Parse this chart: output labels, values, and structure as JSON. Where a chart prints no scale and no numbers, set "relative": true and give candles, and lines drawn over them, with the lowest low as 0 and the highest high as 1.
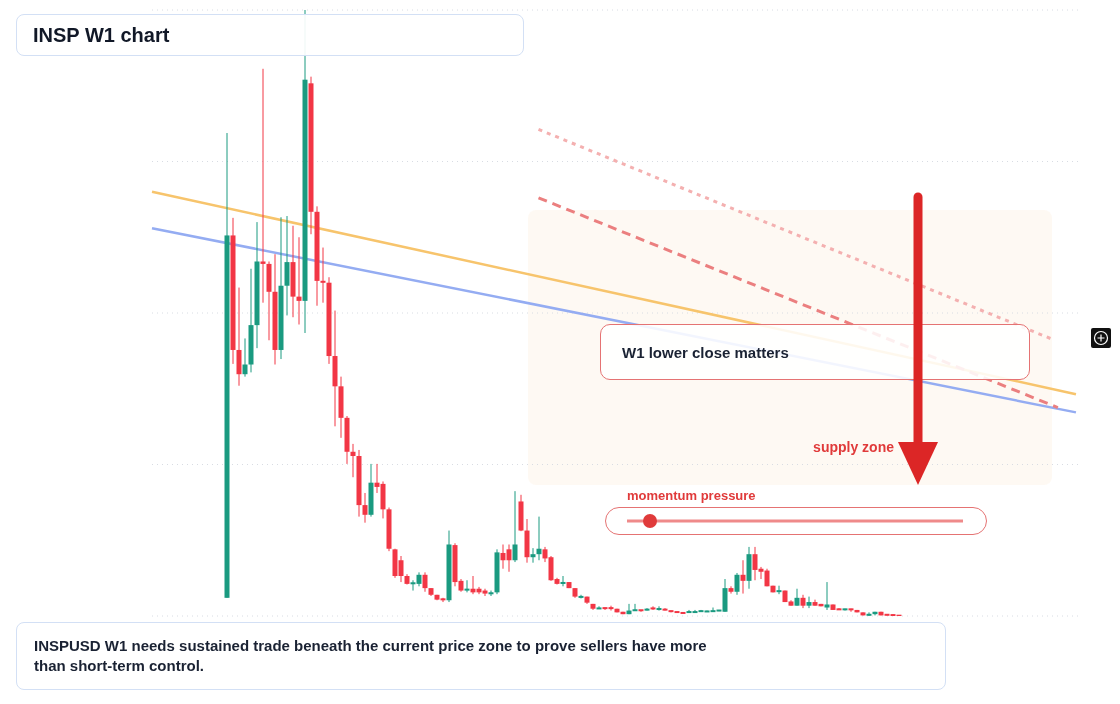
{
  "chart_data": {
    "type": "candlestick",
    "title": "INSP W1 chart",
    "relative": true,
    "grid": "y",
    "categories": [
      null,
      null,
      null,
      null,
      null,
      null,
      null,
      null,
      null,
      null,
      null,
      null,
      null,
      null,
      null,
      null,
      null,
      null,
      null,
      null,
      null,
      null,
      null,
      null,
      null,
      null,
      null,
      null,
      null,
      null,
      null,
      null,
      null,
      null,
      null,
      null,
      null,
      null,
      null,
      null,
      null,
      null,
      null,
      null,
      null,
      null,
      null,
      null,
      null,
      null,
      null,
      null,
      null,
      null,
      null,
      null,
      null,
      null,
      null,
      null,
      null,
      null,
      null,
      null,
      null,
      null,
      null,
      null,
      null,
      null,
      null,
      null,
      null,
      null,
      null,
      null,
      null,
      null,
      null,
      null,
      null,
      null,
      null,
      null,
      null,
      null,
      null,
      null,
      null,
      null,
      null,
      null,
      null,
      null,
      null,
      null,
      null,
      null,
      null,
      null,
      null,
      null,
      null,
      null,
      null,
      null,
      null,
      null,
      null,
      null,
      null,
      null,
      null,
      null,
      null,
      null,
      null,
      null,
      null,
      null,
      null,
      null,
      null,
      null,
      null,
      null,
      null,
      null,
      null,
      null,
      null,
      null,
      null,
      null,
      null,
      null,
      null,
      null,
      null,
      null,
      null,
      null,
      null,
      null,
      null,
      null,
      null,
      null,
      null,
      null,
      null,
      null,
      null,
      null,
      null
    ],
    "ohlc": [
      null,
      null,
      null,
      null,
      null,
      null,
      null,
      null,
      null,
      null,
      null,
      null,
      [
        0.03,
        0.797,
        0.03,
        0.628
      ],
      [
        0.628,
        0.657,
        0.416,
        0.439
      ],
      [
        0.439,
        0.542,
        0.38,
        0.399
      ],
      [
        0.399,
        0.458,
        0.395,
        0.415
      ],
      [
        0.415,
        0.573,
        0.402,
        0.48
      ],
      [
        0.48,
        0.65,
        0.442,
        0.585
      ],
      [
        0.585,
        0.903,
        0.517,
        0.581
      ],
      [
        0.581,
        0.585,
        0.455,
        0.535
      ],
      [
        0.535,
        0.597,
        0.415,
        0.439
      ],
      [
        0.439,
        0.658,
        0.424,
        0.545
      ],
      [
        0.545,
        0.66,
        0.496,
        0.584
      ],
      [
        0.584,
        0.644,
        0.493,
        0.527
      ],
      [
        0.527,
        0.625,
        0.481,
        0.52
      ],
      [
        0.52,
        1.0,
        0.467,
        0.885
      ],
      [
        0.879,
        0.89,
        0.63,
        0.667
      ],
      [
        0.667,
        0.676,
        0.512,
        0.553
      ],
      [
        0.553,
        0.608,
        0.517,
        0.55
      ],
      [
        0.55,
        0.559,
        0.416,
        0.429
      ],
      [
        0.429,
        0.504,
        0.313,
        0.379
      ],
      [
        0.379,
        0.395,
        0.294,
        0.327
      ],
      [
        0.327,
        0.33,
        0.251,
        0.271
      ],
      [
        0.271,
        0.284,
        0.229,
        0.264
      ],
      [
        0.264,
        0.274,
        0.164,
        0.183
      ],
      [
        0.183,
        0.203,
        0.154,
        0.167
      ],
      [
        0.167,
        0.251,
        0.164,
        0.22
      ],
      [
        0.22,
        0.251,
        0.203,
        0.213
      ],
      [
        0.218,
        0.222,
        0.161,
        0.176
      ],
      [
        0.176,
        0.179,
        0.107,
        0.111
      ],
      [
        0.11,
        0.111,
        0.063,
        0.066
      ],
      [
        0.092,
        0.099,
        0.056,
        0.066
      ],
      [
        0.066,
        0.069,
        0.052,
        0.053
      ],
      [
        0.053,
        0.059,
        0.042,
        0.055
      ],
      [
        0.053,
        0.072,
        0.049,
        0.068
      ],
      [
        0.068,
        0.072,
        0.04,
        0.046
      ],
      [
        0.046,
        0.046,
        0.033,
        0.035
      ],
      [
        0.035,
        0.035,
        0.026,
        0.027
      ],
      [
        0.029,
        0.03,
        0.023,
        0.026
      ],
      [
        0.026,
        0.141,
        0.023,
        0.118
      ],
      [
        0.117,
        0.12,
        0.049,
        0.056
      ],
      [
        0.058,
        0.061,
        0.04,
        0.042
      ],
      [
        0.042,
        0.059,
        0.039,
        0.045
      ],
      [
        0.045,
        0.066,
        0.036,
        0.039
      ],
      [
        0.045,
        0.048,
        0.036,
        0.039
      ],
      [
        0.042,
        0.045,
        0.033,
        0.037
      ],
      [
        0.036,
        0.042,
        0.033,
        0.039
      ],
      [
        0.039,
        0.11,
        0.036,
        0.105
      ],
      [
        0.104,
        0.118,
        0.078,
        0.092
      ],
      [
        0.11,
        0.118,
        0.073,
        0.092
      ],
      [
        0.092,
        0.206,
        0.089,
        0.118
      ],
      [
        0.189,
        0.2,
        0.14,
        0.141
      ],
      [
        0.141,
        0.16,
        0.088,
        0.097
      ],
      [
        0.097,
        0.112,
        0.088,
        0.102
      ],
      [
        0.102,
        0.164,
        0.092,
        0.111
      ],
      [
        0.11,
        0.114,
        0.089,
        0.095
      ],
      [
        0.097,
        0.099,
        0.058,
        0.059
      ],
      [
        0.061,
        0.063,
        0.052,
        0.053
      ],
      [
        0.053,
        0.066,
        0.049,
        0.056
      ],
      [
        0.056,
        0.056,
        0.046,
        0.046
      ],
      [
        0.046,
        0.046,
        0.03,
        0.032
      ],
      [
        0.031,
        0.035,
        0.029,
        0.032
      ],
      [
        0.032,
        0.032,
        0.02,
        0.022
      ],
      [
        0.02,
        0.02,
        0.01,
        0.012
      ],
      [
        0.012,
        0.016,
        0.012,
        0.013
      ],
      [
        0.014,
        0.014,
        0.01,
        0.012
      ],
      [
        0.014,
        0.017,
        0.009,
        0.012
      ],
      [
        0.012,
        0.012,
        0.006,
        0.006
      ],
      [
        0.007,
        0.007,
        0.003,
        0.003
      ],
      [
        0.003,
        0.02,
        0.003,
        0.009
      ],
      [
        0.009,
        0.02,
        0.009,
        0.01
      ],
      [
        0.01,
        0.01,
        0.007,
        0.009
      ],
      [
        0.009,
        0.013,
        0.009,
        0.012
      ],
      [
        0.013,
        0.016,
        0.01,
        0.012
      ],
      [
        0.01,
        0.016,
        0.009,
        0.013
      ],
      [
        0.012,
        0.013,
        0.009,
        0.009
      ],
      [
        0.009,
        0.009,
        0.006,
        0.007
      ],
      [
        0.007,
        0.007,
        0.006,
        0.006
      ],
      [
        0.006,
        0.006,
        0.004,
        0.004
      ],
      [
        0.006,
        0.01,
        0.006,
        0.007
      ],
      [
        0.006,
        0.01,
        0.006,
        0.007
      ],
      [
        0.007,
        0.01,
        0.007,
        0.009
      ],
      [
        0.007,
        0.009,
        0.007,
        0.008
      ],
      [
        0.007,
        0.014,
        0.007,
        0.009
      ],
      [
        0.008,
        0.01,
        0.008,
        0.01
      ],
      [
        0.007,
        0.061,
        0.007,
        0.046
      ],
      [
        0.046,
        0.049,
        0.037,
        0.04
      ],
      [
        0.04,
        0.071,
        0.035,
        0.068
      ],
      [
        0.068,
        0.092,
        0.037,
        0.058
      ],
      [
        0.058,
        0.114,
        0.045,
        0.102
      ],
      [
        0.102,
        0.114,
        0.059,
        0.076
      ],
      [
        0.078,
        0.081,
        0.061,
        0.073
      ],
      [
        0.075,
        0.078,
        0.049,
        0.049
      ],
      [
        0.05,
        0.05,
        0.039,
        0.039
      ],
      [
        0.04,
        0.05,
        0.036,
        0.042
      ],
      [
        0.042,
        0.042,
        0.023,
        0.023
      ],
      [
        0.024,
        0.026,
        0.017,
        0.017
      ],
      [
        0.017,
        0.045,
        0.017,
        0.03
      ],
      [
        0.03,
        0.035,
        0.013,
        0.017
      ],
      [
        0.017,
        0.032,
        0.013,
        0.023
      ],
      [
        0.023,
        0.027,
        0.017,
        0.017
      ],
      [
        0.02,
        0.02,
        0.016,
        0.016
      ],
      [
        0.014,
        0.056,
        0.01,
        0.019
      ],
      [
        0.019,
        0.019,
        0.01,
        0.01
      ],
      [
        0.012,
        0.013,
        0.01,
        0.01
      ],
      [
        0.01,
        0.012,
        0.009,
        0.012
      ],
      [
        0.012,
        0.012,
        0.007,
        0.01
      ],
      [
        0.01,
        0.01,
        0.006,
        0.006
      ],
      [
        0.006,
        0.006,
        0.001,
        0.001
      ],
      [
        0.001,
        0.006,
        0.0,
        0.003
      ],
      [
        0.003,
        0.007,
        0.001,
        0.007
      ],
      [
        0.007,
        0.007,
        0.001,
        0.001
      ],
      [
        0.003,
        0.003,
        0.001,
        0.001
      ],
      [
        0.003,
        0.003,
        0.0,
        0.0
      ],
      [
        0.001,
        0.001,
        0.0,
        0.0
      ],
      null,
      null,
      null,
      null,
      null,
      null,
      null,
      null,
      null,
      null,
      null,
      null,
      null,
      null,
      null,
      null,
      null,
      null,
      null,
      null,
      null,
      null,
      null,
      null,
      null,
      null,
      null,
      null,
      null,
      null
    ],
    "series": [
      {
        "type": "line",
        "color": "#f7c46c",
        "line_style": "solid",
        "values": [
          0.7,
          null,
          null,
          null,
          null,
          null,
          null,
          null,
          null,
          null,
          null,
          null,
          null,
          null,
          null,
          null,
          null,
          null,
          null,
          null,
          null,
          null,
          null,
          null,
          null,
          null,
          null,
          null,
          null,
          null,
          null,
          null,
          null,
          null,
          null,
          null,
          null,
          null,
          null,
          null,
          null,
          null,
          null,
          null,
          null,
          null,
          null,
          null,
          null,
          null,
          null,
          null,
          null,
          null,
          null,
          null,
          null,
          null,
          null,
          null,
          null,
          null,
          null,
          null,
          null,
          null,
          null,
          null,
          null,
          null,
          null,
          null,
          null,
          null,
          null,
          null,
          null,
          null,
          null,
          null,
          null,
          null,
          null,
          null,
          null,
          null,
          null,
          null,
          null,
          null,
          null,
          null,
          null,
          null,
          null,
          null,
          null,
          null,
          null,
          null,
          null,
          null,
          null,
          null,
          null,
          null,
          null,
          null,
          null,
          null,
          null,
          null,
          null,
          null,
          null,
          null,
          null,
          null,
          null,
          null,
          null,
          null,
          null,
          null,
          null,
          null,
          null,
          null,
          null,
          null,
          null,
          null,
          null,
          null,
          null,
          null,
          null,
          null,
          null,
          null,
          null,
          null,
          null,
          null,
          null,
          null,
          null,
          null,
          null,
          null,
          null,
          null,
          null,
          0.366,
          null
        ]
      },
      {
        "type": "line",
        "color": "#94acf2",
        "line_style": "solid",
        "values": [
          0.64,
          null,
          null,
          null,
          null,
          null,
          null,
          null,
          null,
          null,
          null,
          null,
          null,
          null,
          null,
          null,
          null,
          null,
          null,
          null,
          null,
          null,
          null,
          null,
          null,
          null,
          null,
          null,
          null,
          null,
          null,
          null,
          null,
          null,
          null,
          null,
          null,
          null,
          null,
          null,
          null,
          null,
          null,
          null,
          null,
          null,
          null,
          null,
          null,
          null,
          null,
          null,
          null,
          null,
          null,
          null,
          null,
          null,
          null,
          null,
          null,
          null,
          null,
          null,
          null,
          null,
          null,
          null,
          null,
          null,
          null,
          null,
          null,
          null,
          null,
          null,
          null,
          null,
          null,
          null,
          null,
          null,
          null,
          null,
          null,
          null,
          null,
          null,
          null,
          null,
          null,
          null,
          null,
          null,
          null,
          null,
          null,
          null,
          null,
          null,
          null,
          null,
          null,
          null,
          null,
          null,
          null,
          null,
          null,
          null,
          null,
          null,
          null,
          null,
          null,
          null,
          null,
          null,
          null,
          null,
          null,
          null,
          null,
          null,
          null,
          null,
          null,
          null,
          null,
          null,
          null,
          null,
          null,
          null,
          null,
          null,
          null,
          null,
          null,
          null,
          null,
          null,
          null,
          null,
          null,
          null,
          null,
          null,
          null,
          null,
          null,
          null,
          null,
          0.336,
          null
        ]
      },
      {
        "type": "line",
        "color": "#eb7f7f",
        "line_style": "dashed",
        "values": [
          null,
          null,
          null,
          null,
          null,
          null,
          null,
          null,
          null,
          null,
          null,
          null,
          null,
          null,
          null,
          null,
          null,
          null,
          null,
          null,
          null,
          null,
          null,
          null,
          null,
          null,
          null,
          null,
          null,
          null,
          null,
          null,
          null,
          null,
          null,
          null,
          null,
          null,
          null,
          null,
          null,
          null,
          null,
          null,
          null,
          null,
          null,
          null,
          null,
          null,
          null,
          null,
          null,
          null,
          null,
          null,
          null,
          null,
          null,
          null,
          null,
          null,
          null,
          null,
          0.69,
          null,
          null,
          null,
          null,
          null,
          null,
          null,
          null,
          null,
          null,
          null,
          null,
          null,
          null,
          null,
          null,
          null,
          null,
          null,
          null,
          null,
          null,
          null,
          null,
          null,
          null,
          null,
          null,
          null,
          null,
          null,
          null,
          null,
          null,
          null,
          null,
          null,
          null,
          null,
          null,
          null,
          null,
          null,
          null,
          null,
          null,
          null,
          null,
          null,
          null,
          null,
          null,
          null,
          null,
          null,
          null,
          null,
          null,
          null,
          null,
          null,
          null,
          null,
          null,
          null,
          null,
          null,
          null,
          null,
          null,
          null,
          null,
          null,
          null,
          null,
          null,
          null,
          null,
          null,
          null,
          null,
          null,
          null,
          null,
          null,
          0.344,
          null,
          null,
          null,
          null
        ]
      },
      {
        "type": "line",
        "color": "#f4b0b0",
        "line_style": "dotted",
        "values": [
          null,
          null,
          null,
          null,
          null,
          null,
          null,
          null,
          null,
          null,
          null,
          null,
          null,
          null,
          null,
          null,
          null,
          null,
          null,
          null,
          null,
          null,
          null,
          null,
          null,
          null,
          null,
          null,
          null,
          null,
          null,
          null,
          null,
          null,
          null,
          null,
          null,
          null,
          null,
          null,
          null,
          null,
          null,
          null,
          null,
          null,
          null,
          null,
          null,
          null,
          null,
          null,
          null,
          null,
          null,
          null,
          null,
          null,
          null,
          null,
          null,
          null,
          null,
          null,
          0.803,
          null,
          null,
          null,
          null,
          null,
          null,
          null,
          null,
          null,
          null,
          null,
          null,
          null,
          null,
          null,
          null,
          null,
          null,
          null,
          null,
          null,
          null,
          null,
          null,
          null,
          null,
          null,
          null,
          null,
          null,
          null,
          null,
          null,
          null,
          null,
          null,
          null,
          null,
          null,
          null,
          null,
          null,
          null,
          null,
          null,
          null,
          null,
          null,
          null,
          null,
          null,
          null,
          null,
          null,
          null,
          null,
          null,
          null,
          null,
          null,
          null,
          null,
          null,
          null,
          null,
          null,
          null,
          null,
          null,
          null,
          null,
          null,
          null,
          null,
          null,
          null,
          null,
          null,
          null,
          null,
          null,
          null,
          null,
          null,
          0.457,
          null,
          null,
          null,
          null,
          null
        ]
      }
    ],
    "annotations": [
      "W1 lower close matters",
      "supply zone",
      "momentum pressure",
      "INSPUSD W1 needs sustained trade beneath the current price zone to prove sellers have more than short-term control."
    ]
  }
}
